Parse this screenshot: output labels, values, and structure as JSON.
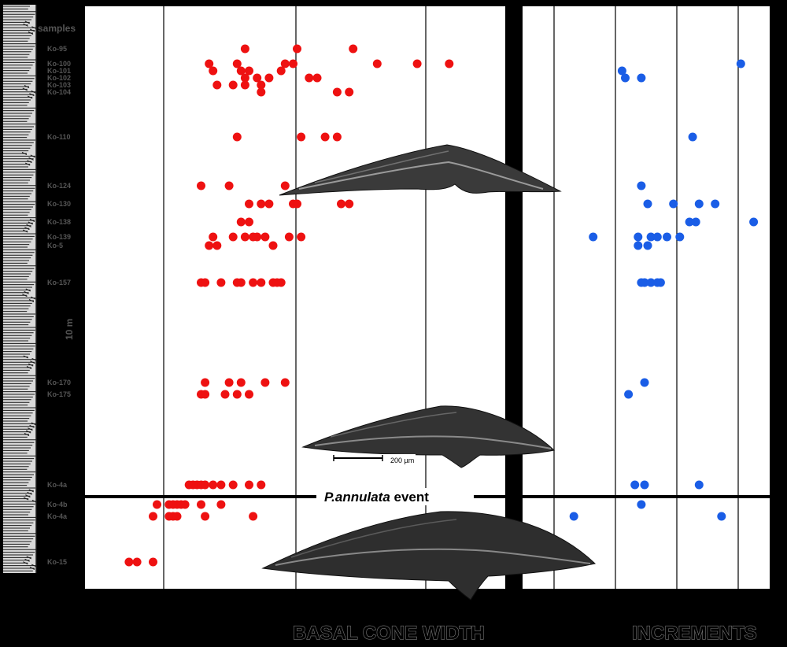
{
  "labels": {
    "samples": "samples",
    "meter": "10 m",
    "scale_bar": "200 µm",
    "event_species": "P.annulata",
    "event_word": " event",
    "left_title": "BASAL CONE WIDTH",
    "right_title": "INCREMENTS"
  },
  "colors": {
    "width_series": "#ee1111",
    "increment_series": "#1a5de6",
    "panel_bg": "#ffffff",
    "frame": "#000000"
  },
  "chart_data": [
    {
      "type": "scatter",
      "title": "",
      "xlabel": "BASAL CONE WIDTH",
      "ylabel": "samples",
      "x_ticks_shown": false,
      "grid": "vertical",
      "series": [
        {
          "points": [
            {
              "sample": "Ko-95",
              "x": [
                5.5,
                6.8,
                8.2
              ]
            },
            {
              "sample": "Ko-100",
              "x": [
                4.6,
                5.3,
                6.5,
                6.7,
                8.8,
                9.8,
                10.6
              ]
            },
            {
              "sample": "Ko-101",
              "x": [
                4.7,
                5.4,
                5.6,
                6.4
              ]
            },
            {
              "sample": "Ko-102",
              "x": [
                5.5,
                5.8,
                6.1,
                7.1,
                7.3
              ]
            },
            {
              "sample": "Ko-103",
              "x": [
                4.8,
                5.2,
                5.5,
                5.9
              ]
            },
            {
              "sample": "Ko-104",
              "x": [
                5.9,
                7.8,
                8.1
              ]
            },
            {
              "sample": "Ko-110",
              "x": [
                5.3,
                6.9,
                7.5,
                7.8
              ]
            },
            {
              "sample": "Ko-124",
              "x": [
                4.4,
                5.1,
                6.5
              ]
            },
            {
              "sample": "Ko-130",
              "x": [
                5.6,
                5.9,
                6.1,
                6.7,
                6.8,
                7.9,
                8.1
              ]
            },
            {
              "sample": "Ko-138",
              "x": [
                5.4,
                5.6
              ]
            },
            {
              "sample": "Ko-139",
              "x": [
                4.7,
                5.2,
                5.5,
                5.7,
                5.8,
                6.0,
                6.6,
                6.9
              ]
            },
            {
              "sample": "Ko-5",
              "x": [
                4.6,
                4.8,
                6.2
              ]
            },
            {
              "sample": "Ko-157",
              "x": [
                4.4,
                4.5,
                4.9,
                5.3,
                5.4,
                5.7,
                5.9,
                6.2,
                6.3,
                6.4
              ]
            },
            {
              "sample": "Ko-170",
              "x": [
                4.5,
                5.1,
                5.4,
                6.0,
                6.5
              ]
            },
            {
              "sample": "Ko-175",
              "x": [
                4.4,
                4.5,
                5.0,
                5.3,
                5.6
              ]
            },
            {
              "sample": "Ko-4a",
              "x": [
                4.1,
                4.2,
                4.3,
                4.4,
                4.5,
                4.7,
                4.9,
                5.2,
                5.6,
                5.9
              ]
            },
            {
              "sample": "Ko-4b",
              "x": [
                3.3,
                3.6,
                3.7,
                3.8,
                3.9,
                4.0,
                4.4,
                4.9
              ]
            },
            {
              "sample": "Ko-4a",
              "x": [
                3.2,
                3.6,
                3.7,
                3.8,
                4.5,
                5.7
              ]
            },
            {
              "sample": "Ko-15",
              "x": [
                2.6,
                2.8,
                3.2
              ]
            }
          ]
        }
      ]
    },
    {
      "type": "scatter",
      "title": "",
      "xlabel": "INCREMENTS",
      "ylabel": "samples",
      "x_ticks_shown": false,
      "grid": "vertical",
      "series": [
        {
          "points": [
            {
              "sample": "Ko-100",
              "x": [
                16.1
              ]
            },
            {
              "sample": "Ko-101",
              "x": [
                12.4
              ]
            },
            {
              "sample": "Ko-102",
              "x": [
                12.5,
                13.0
              ]
            },
            {
              "sample": "Ko-110",
              "x": [
                14.6
              ]
            },
            {
              "sample": "Ko-124",
              "x": [
                13.0
              ]
            },
            {
              "sample": "Ko-130",
              "x": [
                13.2,
                14.0,
                14.8,
                15.3
              ]
            },
            {
              "sample": "Ko-138",
              "x": [
                14.5,
                14.7,
                16.5
              ]
            },
            {
              "sample": "Ko-139",
              "x": [
                11.5,
                12.9,
                13.3,
                13.5,
                13.8,
                14.2
              ]
            },
            {
              "sample": "Ko-5",
              "x": [
                12.9,
                13.2
              ]
            },
            {
              "sample": "Ko-157",
              "x": [
                13.0,
                13.1,
                13.3,
                13.5,
                13.6
              ]
            },
            {
              "sample": "Ko-170",
              "x": [
                13.1
              ]
            },
            {
              "sample": "Ko-175",
              "x": [
                12.6
              ]
            },
            {
              "sample": "Ko-4a",
              "x": [
                12.8,
                13.1,
                14.8
              ]
            },
            {
              "sample": "Ko-4b",
              "x": [
                13.0
              ]
            },
            {
              "sample": "Ko-4a",
              "x": [
                10.9,
                15.5
              ]
            }
          ]
        }
      ]
    }
  ],
  "sample_labels": [
    "Ko-95",
    "Ko-100",
    "Ko-101",
    "Ko-102",
    "Ko-103",
    "Ko-104",
    "Ko-110",
    "Ko-124",
    "Ko-130",
    "Ko-138",
    "Ko-139",
    "Ko-5",
    "Ko-157",
    "Ko-170",
    "Ko-175",
    "Ko-4a",
    "Ko-4b",
    "Ko-4a",
    "Ko-15"
  ]
}
